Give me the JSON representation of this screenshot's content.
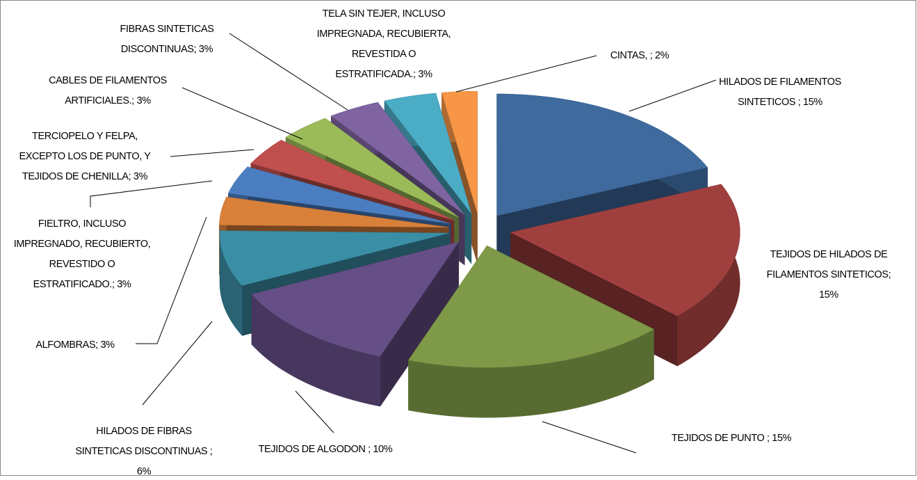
{
  "chart_data": {
    "type": "pie3d",
    "values": [
      15,
      15,
      15,
      10,
      6,
      3,
      3,
      3,
      3,
      3,
      3,
      2
    ],
    "value_labels": [
      [
        "HILADOS DE FILAMENTOS",
        "SINTETICOS ; 15%"
      ],
      [
        "TEJIDOS DE HILADOS DE",
        "FILAMENTOS SINTETICOS;",
        "15%"
      ],
      [
        "TEJIDOS DE PUNTO ; 15%"
      ],
      [
        "TEJIDOS DE ALGODON ; 10%"
      ],
      [
        "HILADOS DE FIBRAS",
        "SINTETICAS DISCONTINUAS ;",
        "6%"
      ],
      [
        "ALFOMBRAS; 3%"
      ],
      [
        "FIELTRO, INCLUSO",
        "IMPREGNADO, RECUBIERTO,",
        "REVESTIDO O",
        "ESTRATIFICADO.; 3%"
      ],
      [
        "TERCIOPELO Y FELPA,",
        "EXCEPTO LOS DE PUNTO, Y",
        "TEJIDOS DE CHENILLA; 3%"
      ],
      [
        "CABLES DE FILAMENTOS",
        "ARTIFICIALES.; 3%"
      ],
      [
        "FIBRAS SINTETICAS",
        "DISCONTINUAS; 3%"
      ],
      [
        "TELA SIN TEJER, INCLUSO",
        "IMPREGNADA, RECUBIERTA,",
        "REVESTIDA O",
        "ESTRATIFICADA.; 3%"
      ],
      [
        "CINTAS, ; 2%"
      ]
    ],
    "colors": [
      "#3e6a9e",
      "#a0403e",
      "#7e9a48",
      "#664f86",
      "#3a8ea6",
      "#d9803a",
      "#4a7ec0",
      "#c0504d",
      "#9bbb59",
      "#8064a2",
      "#4bacc6",
      "#f79646"
    ]
  }
}
